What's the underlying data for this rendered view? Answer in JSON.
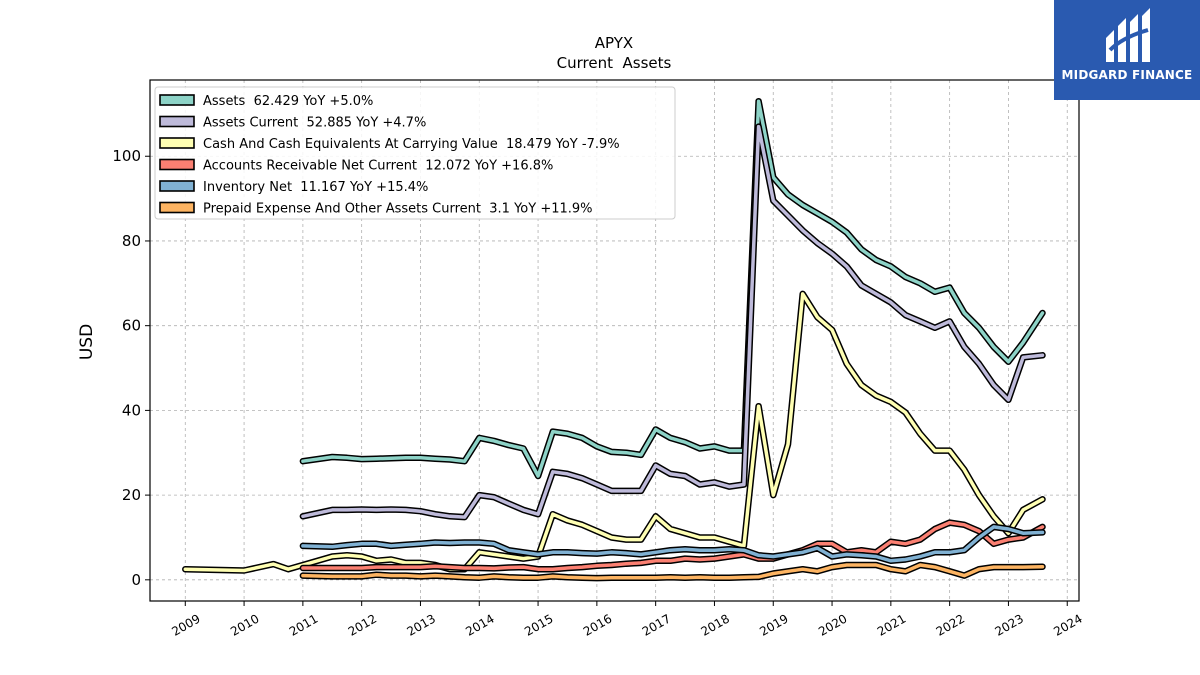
{
  "brand": {
    "name": "MIDGARD FINANCE",
    "color": "#2a5ab0"
  },
  "chart_data": {
    "type": "line",
    "title": "APYX",
    "subtitle": "Current  Assets",
    "ylabel": "USD",
    "xlabel": "",
    "xlim": [
      2008.4,
      2024.2
    ],
    "ylim": [
      -5,
      118
    ],
    "x_ticks": [
      "2009",
      "2010",
      "2011",
      "2012",
      "2013",
      "2014",
      "2015",
      "2016",
      "2017",
      "2018",
      "2019",
      "2020",
      "2021",
      "2022",
      "2023",
      "2024"
    ],
    "y_ticks": [
      "0",
      "20",
      "40",
      "60",
      "80",
      "100"
    ],
    "grid": true,
    "legend_position": "top-left",
    "series": [
      {
        "name": "Assets  62.429 YoY +5.0%",
        "color": "#8dd3c7",
        "x": [
          2011.0,
          2011.5,
          2011.75,
          2012.0,
          2012.25,
          2012.5,
          2012.75,
          2013.0,
          2013.25,
          2013.5,
          2013.75,
          2014.0,
          2014.25,
          2014.5,
          2014.75,
          2015.0,
          2015.25,
          2015.5,
          2015.75,
          2016.0,
          2016.25,
          2016.5,
          2016.75,
          2017.0,
          2017.25,
          2017.5,
          2017.75,
          2018.0,
          2018.25,
          2018.5,
          2018.75,
          2019.0,
          2019.25,
          2019.5,
          2019.75,
          2020.0,
          2020.25,
          2020.5,
          2020.75,
          2021.0,
          2021.25,
          2021.5,
          2021.75,
          2022.0,
          2022.25,
          2022.5,
          2022.75,
          2023.0,
          2023.25,
          2023.58
        ],
        "y": [
          28,
          29,
          28.8,
          28.5,
          28.6,
          28.7,
          28.8,
          28.8,
          28.6,
          28.4,
          28.0,
          33.5,
          32.8,
          31.8,
          31.0,
          24.5,
          35.0,
          34.5,
          33.5,
          31.5,
          30.2,
          30.0,
          29.5,
          35.5,
          33.5,
          32.5,
          31.0,
          31.5,
          30.5,
          30.5,
          113,
          95,
          91,
          88.5,
          86.5,
          84.5,
          82,
          78,
          75.5,
          74,
          71.5,
          70,
          68,
          69,
          63,
          59.5,
          55,
          51.5,
          56,
          63
        ]
      },
      {
        "name": "Assets Current  52.885 YoY +4.7%",
        "color": "#bebada",
        "x": [
          2011.0,
          2011.5,
          2011.75,
          2012.0,
          2012.25,
          2012.5,
          2012.75,
          2013.0,
          2013.25,
          2013.5,
          2013.75,
          2014.0,
          2014.25,
          2014.5,
          2014.75,
          2015.0,
          2015.25,
          2015.5,
          2015.75,
          2016.0,
          2016.25,
          2016.5,
          2016.75,
          2017.0,
          2017.25,
          2017.5,
          2017.75,
          2018.0,
          2018.25,
          2018.5,
          2018.75,
          2019.0,
          2019.25,
          2019.5,
          2019.75,
          2020.0,
          2020.25,
          2020.5,
          2020.75,
          2021.0,
          2021.25,
          2021.5,
          2021.75,
          2022.0,
          2022.25,
          2022.5,
          2022.75,
          2023.0,
          2023.25,
          2023.58
        ],
        "y": [
          15,
          16.5,
          16.5,
          16.6,
          16.5,
          16.6,
          16.5,
          16.2,
          15.5,
          15.0,
          14.8,
          20,
          19.5,
          18.0,
          16.5,
          15.5,
          25.5,
          25.0,
          24.0,
          22.5,
          21.0,
          21.0,
          21.0,
          27,
          25,
          24.5,
          22.5,
          23,
          22.0,
          22.5,
          107,
          89.5,
          86,
          82.5,
          79.5,
          77,
          74,
          69.5,
          67.5,
          65.5,
          62.5,
          61,
          59.5,
          61,
          55,
          51,
          46,
          42.5,
          52.5,
          53
        ]
      },
      {
        "name": "Cash And Cash Equivalents At Carrying Value  18.479 YoY -7.9%",
        "color": "#ffffb3",
        "x": [
          2009.0,
          2010.0,
          2010.5,
          2010.75,
          2011.0,
          2011.5,
          2011.75,
          2012.0,
          2012.25,
          2012.5,
          2012.75,
          2013.0,
          2013.25,
          2013.5,
          2013.75,
          2014.0,
          2014.25,
          2014.5,
          2014.75,
          2015.0,
          2015.25,
          2015.5,
          2015.75,
          2016.0,
          2016.25,
          2016.5,
          2016.75,
          2017.0,
          2017.25,
          2017.5,
          2017.75,
          2018.0,
          2018.25,
          2018.5,
          2018.75,
          2019.0,
          2019.25,
          2019.5,
          2019.75,
          2020.0,
          2020.25,
          2020.5,
          2020.75,
          2021.0,
          2021.25,
          2021.5,
          2021.75,
          2022.0,
          2022.25,
          2022.5,
          2022.75,
          2023.0,
          2023.25,
          2023.58
        ],
        "y": [
          2.5,
          2.2,
          3.7,
          2.5,
          3.5,
          5.5,
          5.8,
          5.5,
          4.5,
          4.8,
          4.0,
          4.0,
          3.5,
          2.5,
          2.5,
          6.5,
          6.0,
          5.5,
          5.0,
          5.5,
          15.5,
          14.0,
          13.0,
          11.5,
          10.0,
          9.5,
          9.5,
          15.0,
          12.0,
          11.0,
          10.0,
          10.0,
          9.0,
          8.0,
          41.0,
          20.0,
          32.0,
          67.5,
          62.0,
          59.0,
          51.0,
          46.0,
          43.5,
          42.0,
          39.5,
          34.5,
          30.5,
          30.5,
          26.0,
          20.0,
          15.0,
          11.0,
          16.5,
          19.0
        ]
      },
      {
        "name": "Accounts Receivable Net Current  12.072 YoY +16.8%",
        "color": "#fb8072",
        "x": [
          2011.0,
          2011.5,
          2012.0,
          2012.25,
          2012.5,
          2012.75,
          2013.0,
          2013.25,
          2013.5,
          2013.75,
          2014.0,
          2014.25,
          2014.5,
          2014.75,
          2015.0,
          2015.25,
          2015.5,
          2015.75,
          2016.0,
          2016.25,
          2016.5,
          2016.75,
          2017.0,
          2017.25,
          2017.5,
          2017.75,
          2018.0,
          2018.25,
          2018.5,
          2018.75,
          2019.0,
          2019.25,
          2019.5,
          2019.75,
          2020.0,
          2020.25,
          2020.5,
          2020.75,
          2021.0,
          2021.25,
          2021.5,
          2021.75,
          2022.0,
          2022.25,
          2022.5,
          2022.75,
          2023.0,
          2023.25,
          2023.58
        ],
        "y": [
          2.8,
          2.8,
          2.8,
          3.0,
          3.0,
          3.0,
          3.0,
          3.2,
          3.0,
          2.8,
          2.8,
          2.7,
          2.9,
          3.0,
          2.5,
          2.5,
          2.8,
          3.0,
          3.3,
          3.5,
          3.8,
          4.0,
          4.5,
          4.5,
          5.0,
          4.8,
          5.0,
          5.5,
          6.0,
          5.0,
          5.0,
          6.0,
          7.0,
          8.5,
          8.5,
          6.5,
          7.0,
          6.5,
          9.0,
          8.5,
          9.5,
          12.0,
          13.5,
          13.0,
          11.5,
          8.5,
          9.5,
          10.0,
          12.5
        ]
      },
      {
        "name": "Inventory Net  11.167 YoY +15.4%",
        "color": "#80b1d3",
        "x": [
          2011.0,
          2011.5,
          2011.75,
          2012.0,
          2012.25,
          2012.5,
          2012.75,
          2013.0,
          2013.25,
          2013.5,
          2013.75,
          2014.0,
          2014.25,
          2014.5,
          2014.75,
          2015.0,
          2015.25,
          2015.5,
          2015.75,
          2016.0,
          2016.25,
          2016.5,
          2016.75,
          2017.0,
          2017.25,
          2017.5,
          2017.75,
          2018.0,
          2018.25,
          2018.5,
          2018.75,
          2019.0,
          2019.25,
          2019.5,
          2019.75,
          2020.0,
          2020.25,
          2020.5,
          2020.75,
          2021.0,
          2021.25,
          2021.5,
          2021.75,
          2022.0,
          2022.25,
          2022.5,
          2022.75,
          2023.0,
          2023.25,
          2023.58
        ],
        "y": [
          8.0,
          7.8,
          8.2,
          8.5,
          8.5,
          8.0,
          8.3,
          8.5,
          8.8,
          8.7,
          8.8,
          8.8,
          8.5,
          7.0,
          6.5,
          6.0,
          6.5,
          6.5,
          6.3,
          6.2,
          6.5,
          6.3,
          6.0,
          6.5,
          7.0,
          7.2,
          7.0,
          7.0,
          7.2,
          7.0,
          5.8,
          5.5,
          6.0,
          6.5,
          7.5,
          5.5,
          6.0,
          5.8,
          5.5,
          4.5,
          4.8,
          5.5,
          6.5,
          6.5,
          7.0,
          10.0,
          12.5,
          12.0,
          11.0,
          11.2
        ]
      },
      {
        "name": "Prepaid Expense And Other Assets Current  3.1 YoY +11.9%",
        "color": "#fdb462",
        "x": [
          2011.0,
          2011.5,
          2012.0,
          2012.25,
          2012.5,
          2012.75,
          2013.0,
          2013.25,
          2013.5,
          2013.75,
          2014.0,
          2014.25,
          2014.5,
          2014.75,
          2015.0,
          2015.25,
          2015.5,
          2015.75,
          2016.0,
          2016.25,
          2016.5,
          2016.75,
          2017.0,
          2017.25,
          2017.5,
          2017.75,
          2018.0,
          2018.25,
          2018.5,
          2018.75,
          2019.0,
          2019.25,
          2019.5,
          2019.75,
          2020.0,
          2020.25,
          2020.5,
          2020.75,
          2021.0,
          2021.25,
          2021.5,
          2021.75,
          2022.0,
          2022.25,
          2022.5,
          2022.75,
          2023.0,
          2023.25,
          2023.58
        ],
        "y": [
          1.0,
          0.8,
          0.8,
          1.2,
          1.0,
          1.0,
          0.8,
          1.0,
          0.8,
          0.6,
          0.5,
          0.8,
          0.6,
          0.5,
          0.5,
          0.8,
          0.6,
          0.5,
          0.4,
          0.5,
          0.5,
          0.5,
          0.5,
          0.6,
          0.5,
          0.6,
          0.5,
          0.5,
          0.6,
          0.7,
          1.5,
          2.0,
          2.5,
          2.0,
          3.0,
          3.5,
          3.5,
          3.5,
          2.5,
          2.0,
          3.5,
          3.0,
          2.0,
          1.0,
          2.5,
          3.0,
          3.0,
          3.0,
          3.1
        ]
      }
    ]
  }
}
